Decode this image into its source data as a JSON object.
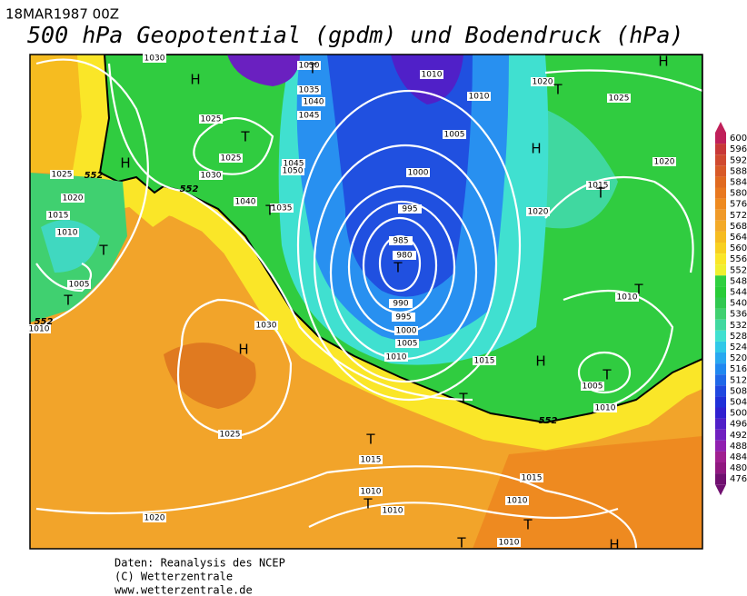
{
  "header": {
    "date": "18MAR1987 00Z",
    "title": "500 hPa Geopotential (gpdm) und Bodendruck (hPa)"
  },
  "colorbar": {
    "values": [
      600,
      596,
      592,
      588,
      584,
      580,
      576,
      572,
      568,
      564,
      560,
      556,
      552,
      548,
      544,
      540,
      536,
      532,
      528,
      524,
      520,
      516,
      512,
      508,
      504,
      500,
      496,
      492,
      488,
      484,
      480,
      476
    ],
    "colors": [
      "#c0205a",
      "#c83838",
      "#d04a30",
      "#d85a28",
      "#e06a20",
      "#e87820",
      "#ee8a20",
      "#f09a28",
      "#f3aa28",
      "#f6bc20",
      "#f8d020",
      "#fae628",
      "#f0f030",
      "#30d040",
      "#28cc38",
      "#30c850",
      "#40d070",
      "#40d8a0",
      "#40e0d0",
      "#30c8e8",
      "#28a8f0",
      "#2088f0",
      "#2068e8",
      "#2048e0",
      "#2030d8",
      "#3020d0",
      "#5020c8",
      "#7020c0",
      "#9020b0",
      "#a02090",
      "#901880",
      "#701070"
    ]
  },
  "map": {
    "isobar_labels": [
      "1030",
      "1035",
      "1040",
      "1045",
      "1045",
      "1050",
      "1040",
      "1035",
      "1030",
      "1025",
      "1025",
      "1030",
      "1025",
      "1020",
      "1015",
      "1010",
      "1005",
      "1010",
      "1010",
      "1010",
      "1005",
      "1000",
      "995",
      "985",
      "980",
      "990",
      "995",
      "1000",
      "1005",
      "1010",
      "1015",
      "1020",
      "1025",
      "1020",
      "1015",
      "1020",
      "1010",
      "1005",
      "1010",
      "1030",
      "1025",
      "1020",
      "1015",
      "1015",
      "1010",
      "1010",
      "1010",
      "1010"
    ],
    "gph_labels": [
      "552",
      "552",
      "552",
      "552"
    ],
    "centers": [
      "H",
      "T",
      "H",
      "T",
      "T",
      "T",
      "T",
      "H",
      "T",
      "T",
      "H",
      "H",
      "T",
      "T",
      "H",
      "T",
      "T",
      "T",
      "T",
      "T",
      "T",
      "H"
    ]
  },
  "footer": [
    "Daten: Reanalysis des NCEP",
    "(C) Wetterzentrale",
    "www.wetterzentrale.de"
  ]
}
